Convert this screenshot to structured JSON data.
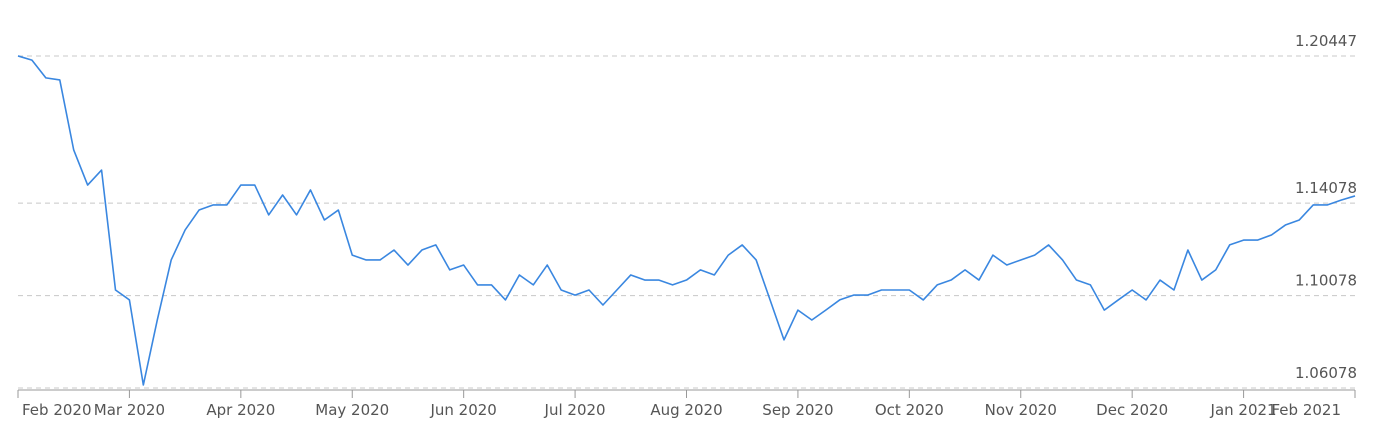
{
  "chart_data": {
    "type": "line",
    "categories": [
      "Feb 2020",
      null,
      null,
      null,
      null,
      null,
      null,
      null,
      "Mar 2020",
      null,
      null,
      null,
      null,
      null,
      null,
      null,
      "Apr 2020",
      null,
      null,
      null,
      null,
      null,
      null,
      null,
      "May 2020",
      null,
      null,
      null,
      null,
      null,
      null,
      null,
      "Jun 2020",
      null,
      null,
      null,
      null,
      null,
      null,
      null,
      "Jul 2020",
      null,
      null,
      null,
      null,
      null,
      null,
      null,
      "Aug 2020",
      null,
      null,
      null,
      null,
      null,
      null,
      null,
      "Sep 2020",
      null,
      null,
      null,
      null,
      null,
      null,
      null,
      "Oct 2020",
      null,
      null,
      null,
      null,
      null,
      null,
      null,
      "Nov 2020",
      null,
      null,
      null,
      null,
      null,
      null,
      null,
      "Dec 2020",
      null,
      null,
      null,
      null,
      null,
      null,
      null,
      "Jan 2021",
      null,
      null,
      null,
      null,
      null,
      null,
      null,
      "Feb 2021"
    ],
    "values": [
      1.2045,
      1.2027,
      1.195,
      1.1941,
      1.1638,
      1.1486,
      1.1551,
      1.1032,
      1.0989,
      1.0621,
      1.0902,
      1.1162,
      1.1292,
      1.1378,
      1.14,
      1.14,
      1.1486,
      1.1486,
      1.1357,
      1.1443,
      1.1357,
      1.1465,
      1.1335,
      1.1378,
      1.1183,
      1.1162,
      1.1162,
      1.1205,
      1.114,
      1.1205,
      1.1227,
      1.1119,
      1.114,
      1.1054,
      1.1054,
      1.0989,
      1.1097,
      1.1054,
      1.114,
      1.1032,
      1.101,
      1.1032,
      1.0967,
      1.1032,
      1.1097,
      1.1075,
      1.1075,
      1.1054,
      1.1075,
      1.1119,
      1.1097,
      1.1183,
      1.1227,
      1.1162,
      1.0989,
      1.0816,
      1.0945,
      1.0902,
      1.0945,
      1.0989,
      1.101,
      1.101,
      1.1032,
      1.1032,
      1.1032,
      1.0989,
      1.1054,
      1.1075,
      1.1119,
      1.1075,
      1.1183,
      1.114,
      1.1162,
      1.1183,
      1.1227,
      1.1162,
      1.1075,
      1.1054,
      1.0945,
      1.0989,
      1.1032,
      1.0989,
      1.1075,
      1.1032,
      1.1205,
      1.1075,
      1.1119,
      1.1227,
      1.1248,
      1.1248,
      1.127,
      1.1313,
      1.1335,
      1.14,
      1.14,
      1.1421,
      1.1439
    ],
    "color": "#3a87e0",
    "ylim": [
      1.06078,
      1.20447
    ],
    "yticks": [
      1.06078,
      1.10078,
      1.14078,
      1.20447
    ],
    "grid": true
  }
}
